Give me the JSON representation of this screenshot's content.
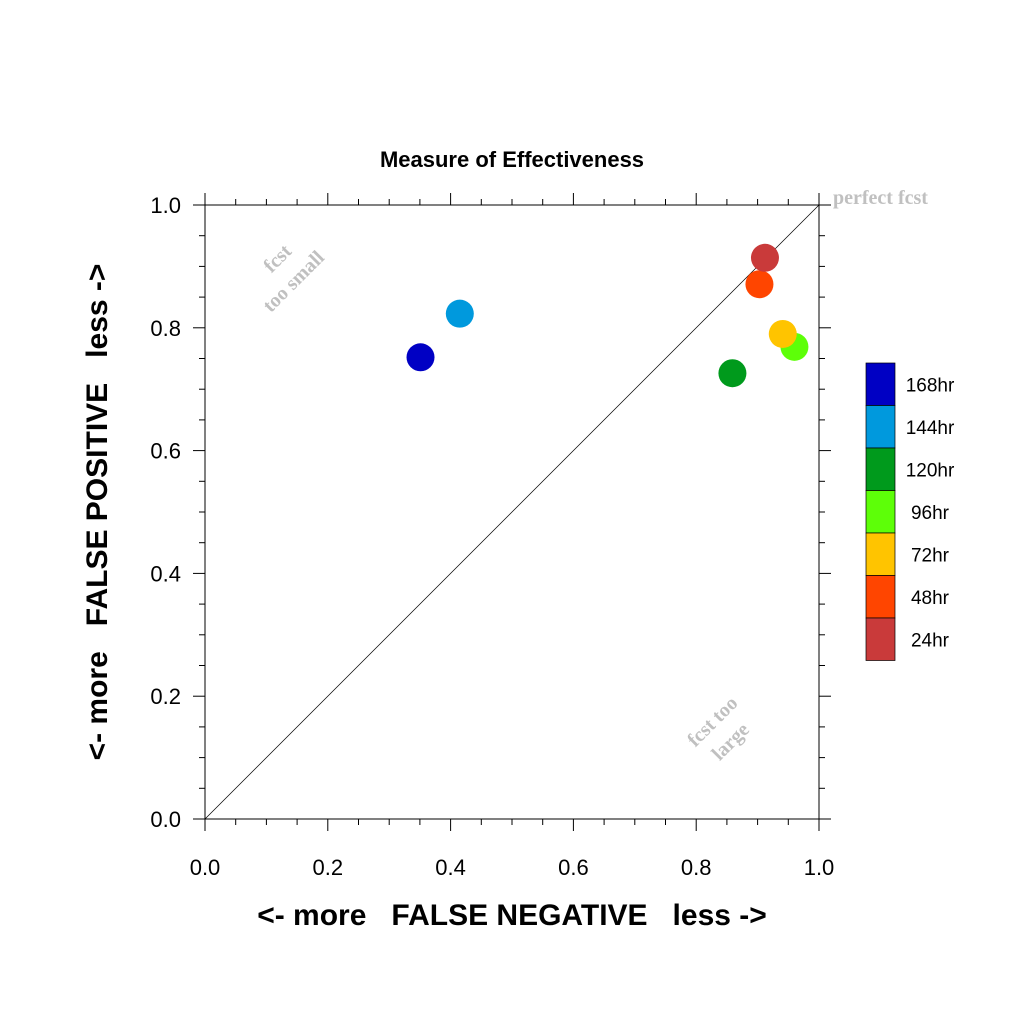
{
  "chart_data": {
    "type": "scatter",
    "title": "Measure of Effectiveness",
    "xlabel": "<- more   FALSE NEGATIVE   less ->",
    "ylabel": "<- more   FALSE POSITIVE   less ->",
    "xlim": [
      0.0,
      1.0
    ],
    "ylim": [
      0.0,
      1.0
    ],
    "x_ticks": [
      "0.0",
      "0.2",
      "0.4",
      "0.6",
      "0.8",
      "1.0"
    ],
    "y_ticks": [
      "0.0",
      "0.2",
      "0.4",
      "0.6",
      "0.8",
      "1.0"
    ],
    "grid": false,
    "diagonal_line": true,
    "annotations": [
      {
        "text": "perfect fcst"
      },
      {
        "text": "fcst"
      },
      {
        "text": "too small"
      },
      {
        "text": "fcst too"
      },
      {
        "text": "large"
      }
    ],
    "legend_placement": "right",
    "series": [
      {
        "name": "168hr",
        "color": "#0000c4",
        "x": 0.351,
        "y": 0.752
      },
      {
        "name": "144hr",
        "color": "#0099dd",
        "x": 0.415,
        "y": 0.823
      },
      {
        "name": "120hr",
        "color": "#009a1c",
        "x": 0.859,
        "y": 0.726
      },
      {
        "name": "96hr",
        "color": "#5dff08",
        "x": 0.96,
        "y": 0.769
      },
      {
        "name": "72hr",
        "color": "#ffc400",
        "x": 0.941,
        "y": 0.79
      },
      {
        "name": "48hr",
        "color": "#ff4500",
        "x": 0.903,
        "y": 0.871
      },
      {
        "name": "24hr",
        "color": "#c93a3a",
        "x": 0.912,
        "y": 0.914
      }
    ]
  }
}
